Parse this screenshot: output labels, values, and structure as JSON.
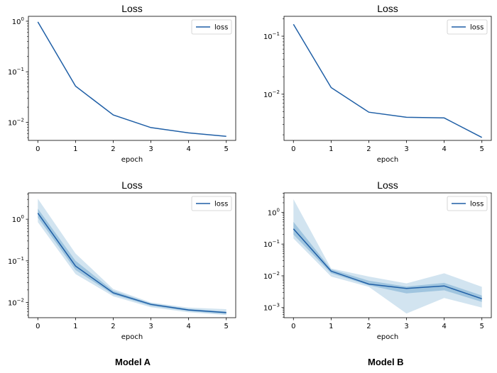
{
  "captions": [
    "Model A",
    "Model B"
  ],
  "colors": {
    "line": "#1f5fa6",
    "band": "#1f77b4"
  },
  "chart_data": [
    {
      "type": "line",
      "title": "Loss",
      "xlabel": "epoch",
      "yscale": "log",
      "x": [
        0,
        1,
        2,
        3,
        4,
        5
      ],
      "xlim": [
        -0.25,
        5.25
      ],
      "ylim": [
        0.0044,
        1.25
      ],
      "yticks": [
        {
          "base": "10",
          "exp": "0",
          "value": 1
        },
        {
          "base": "10",
          "exp": "−1",
          "value": 0.1
        },
        {
          "base": "10",
          "exp": "−2",
          "value": 0.01
        }
      ],
      "legend": {
        "position": "top-right"
      },
      "series": [
        {
          "name": "loss",
          "values": [
            0.97,
            0.052,
            0.014,
            0.0079,
            0.0062,
            0.0053
          ]
        }
      ]
    },
    {
      "type": "line",
      "title": "Loss",
      "xlabel": "epoch",
      "yscale": "log",
      "x": [
        0,
        1,
        2,
        3,
        4,
        5
      ],
      "xlim": [
        -0.25,
        5.25
      ],
      "ylim": [
        0.0016,
        0.22
      ],
      "yticks": [
        {
          "base": "10",
          "exp": "−1",
          "value": 0.1
        },
        {
          "base": "10",
          "exp": "−2",
          "value": 0.01
        }
      ],
      "legend": {
        "position": "top-right"
      },
      "series": [
        {
          "name": "loss",
          "values": [
            0.16,
            0.013,
            0.0049,
            0.004,
            0.0039,
            0.0018
          ]
        }
      ]
    },
    {
      "type": "line",
      "title": "Loss",
      "xlabel": "epoch",
      "yscale": "log",
      "x": [
        0,
        1,
        2,
        3,
        4,
        5
      ],
      "xlim": [
        -0.25,
        5.25
      ],
      "ylim": [
        0.0043,
        4.3
      ],
      "yticks": [
        {
          "base": "10",
          "exp": "0",
          "value": 1
        },
        {
          "base": "10",
          "exp": "−1",
          "value": 0.1
        },
        {
          "base": "10",
          "exp": "−2",
          "value": 0.01
        }
      ],
      "legend": {
        "position": "top-right"
      },
      "series": [
        {
          "name": "loss",
          "values": [
            1.4,
            0.075,
            0.017,
            0.009,
            0.0066,
            0.0057
          ],
          "bands": [
            {
              "low": [
                0.85,
                0.048,
                0.014,
                0.0077,
                0.0058,
                0.005
              ],
              "high": [
                3.1,
                0.15,
                0.021,
                0.01,
                0.0075,
                0.0069
              ]
            },
            {
              "low": [
                1.1,
                0.06,
                0.0155,
                0.0083,
                0.0062,
                0.0053
              ],
              "high": [
                1.8,
                0.1,
                0.019,
                0.0095,
                0.007,
                0.006
              ]
            }
          ]
        }
      ]
    },
    {
      "type": "line",
      "title": "Loss",
      "xlabel": "epoch",
      "yscale": "log",
      "x": [
        0,
        1,
        2,
        3,
        4,
        5
      ],
      "xlim": [
        -0.25,
        5.25
      ],
      "ylim": [
        0.00048,
        4.1
      ],
      "yticks": [
        {
          "base": "10",
          "exp": "0",
          "value": 1
        },
        {
          "base": "10",
          "exp": "−1",
          "value": 0.1
        },
        {
          "base": "10",
          "exp": "−2",
          "value": 0.01
        },
        {
          "base": "10",
          "exp": "−3",
          "value": 0.001
        }
      ],
      "legend": {
        "position": "top-right"
      },
      "series": [
        {
          "name": "loss",
          "values": [
            0.3,
            0.014,
            0.0055,
            0.004,
            0.0048,
            0.0019
          ],
          "bands": [
            {
              "low": [
                0.15,
                0.0095,
                0.0045,
                0.00065,
                0.002,
                0.001
              ],
              "high": [
                2.6,
                0.017,
                0.0095,
                0.0058,
                0.012,
                0.0045
              ]
            },
            {
              "low": [
                0.2,
                0.012,
                0.005,
                0.0028,
                0.0035,
                0.0015
              ],
              "high": [
                0.5,
                0.016,
                0.007,
                0.0046,
                0.006,
                0.0024
              ]
            }
          ]
        }
      ]
    }
  ]
}
